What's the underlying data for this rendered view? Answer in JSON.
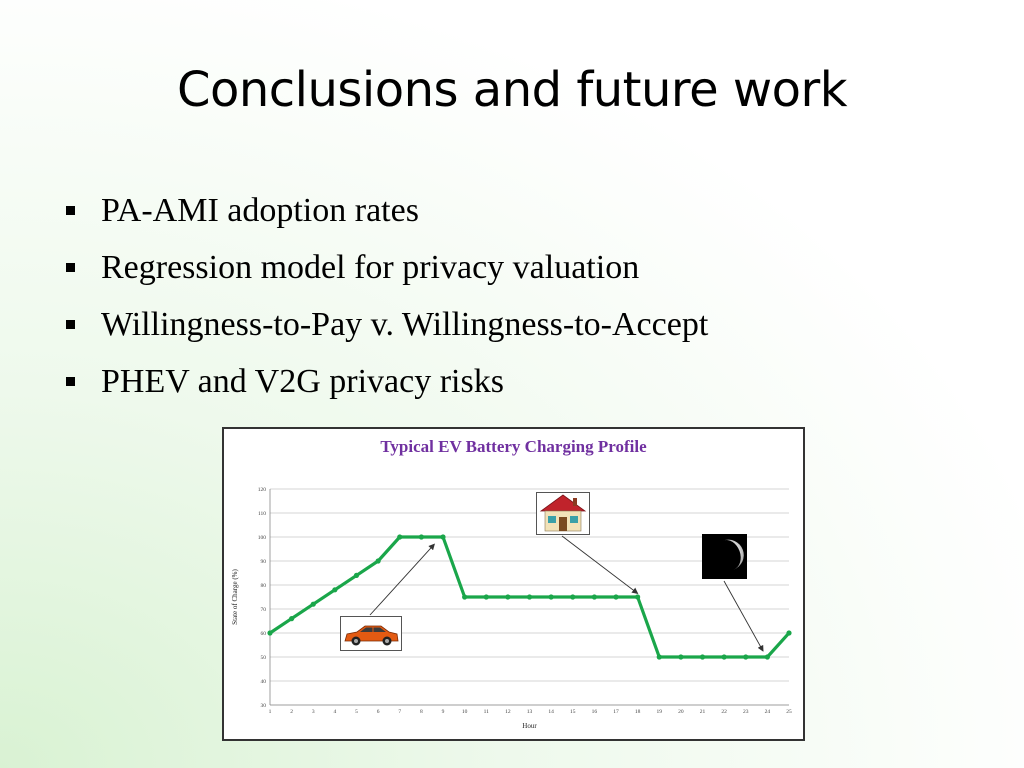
{
  "slide": {
    "title": "Conclusions and future work",
    "bullets": [
      "PA-AMI adoption rates",
      "Regression model for privacy valuation",
      "Willingness-to-Pay v. Willingness-to-Accept",
      "PHEV and V2G privacy risks"
    ]
  },
  "icons": [
    "car-image",
    "house-image",
    "moon-image"
  ],
  "chart_data": {
    "type": "line",
    "title": "Typical EV Battery Charging Profile",
    "xlabel": "Hour",
    "ylabel": "State of Charge (%)",
    "x": [
      1,
      2,
      3,
      4,
      5,
      6,
      7,
      8,
      9,
      10,
      11,
      12,
      13,
      14,
      15,
      16,
      17,
      18,
      19,
      20,
      21,
      22,
      23,
      24,
      25
    ],
    "series": [
      {
        "values": [
          60,
          66,
          72,
          78,
          84,
          90,
          100,
          100,
          100,
          75,
          75,
          75,
          75,
          75,
          75,
          75,
          75,
          75,
          50,
          50,
          50,
          50,
          50,
          50,
          60
        ]
      }
    ],
    "xlim": [
      1,
      25
    ],
    "ylim": [
      30,
      120
    ],
    "y_ticks": [
      30,
      40,
      50,
      60,
      70,
      80,
      90,
      100,
      110,
      120
    ],
    "grid": true,
    "line_color": "#1aa64a"
  }
}
